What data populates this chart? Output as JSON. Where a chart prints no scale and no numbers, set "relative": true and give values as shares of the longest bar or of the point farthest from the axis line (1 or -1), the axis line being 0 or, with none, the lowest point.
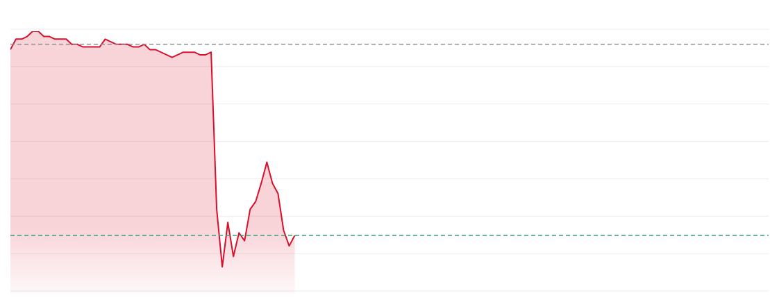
{
  "chart_data": {
    "type": "area",
    "relative": true,
    "grid": "y",
    "categories": [
      null,
      null,
      null,
      null,
      null,
      null,
      null,
      null,
      null,
      null,
      null,
      null,
      null,
      null,
      null,
      null,
      null,
      null,
      null,
      null,
      null,
      null,
      null,
      null,
      null,
      null,
      null,
      null,
      null,
      null,
      null,
      null,
      null,
      null,
      null,
      null,
      null,
      null,
      null,
      null,
      null,
      null,
      null,
      null,
      null,
      null,
      null,
      null,
      null,
      null,
      null,
      null,
      null,
      null,
      null,
      null,
      null,
      null,
      null,
      null,
      null,
      null,
      null,
      null,
      null,
      null,
      null,
      null,
      null,
      null,
      null,
      null,
      null,
      null,
      null,
      null,
      null,
      null,
      null,
      null,
      null,
      null,
      null,
      null,
      null,
      null,
      null,
      null,
      null,
      null,
      null,
      null,
      null,
      null,
      null,
      null,
      null,
      null,
      null,
      null,
      null,
      null,
      null,
      null,
      null,
      null,
      null,
      null,
      null,
      null,
      null,
      null,
      null,
      null,
      null,
      null,
      null,
      null,
      null,
      null,
      null,
      null,
      null,
      null,
      null,
      null,
      null,
      null,
      null,
      null,
      null,
      null,
      null,
      null,
      null,
      null,
      null
    ],
    "series": [
      {
        "color": "#d9102b",
        "values": [
          0.93,
          0.97,
          0.97,
          0.98,
          1.0,
          1.0,
          0.98,
          0.98,
          0.97,
          0.97,
          0.97,
          0.95,
          0.95,
          0.94,
          0.94,
          0.94,
          0.94,
          0.97,
          0.96,
          0.95,
          0.95,
          0.95,
          0.94,
          0.94,
          0.95,
          0.93,
          0.93,
          0.92,
          0.91,
          0.9,
          0.91,
          0.92,
          0.92,
          0.92,
          0.91,
          0.91,
          0.92,
          0.32,
          0.1,
          0.27,
          0.14,
          0.23,
          0.2,
          0.32,
          0.35,
          0.42,
          0.5,
          0.42,
          0.38,
          0.24,
          0.18,
          0.22,
          null,
          null,
          null,
          null,
          null,
          null,
          null,
          null,
          null,
          null,
          null,
          null,
          null,
          null,
          null,
          null,
          null,
          null,
          null,
          null,
          null,
          null,
          null,
          null,
          null,
          null,
          null,
          null,
          null,
          null,
          null,
          null,
          null,
          null,
          null,
          null,
          null,
          null,
          null,
          null,
          null,
          null,
          null,
          null,
          null,
          null,
          null,
          null,
          null,
          null,
          null,
          null,
          null,
          null,
          null,
          null,
          null,
          null,
          null,
          null,
          null,
          null,
          null,
          null,
          null,
          null,
          null,
          null,
          null,
          null,
          null,
          null,
          null,
          null,
          null,
          null,
          null,
          null,
          null,
          null,
          null,
          null,
          null,
          null,
          null
        ]
      }
    ],
    "ref_lines": [
      {
        "axis": "y",
        "value": 0.95,
        "color": "#8a8f98",
        "line_style": "dashed"
      },
      {
        "axis": "y",
        "value": 0.22,
        "color": "#3d9a7f",
        "line_style": "dashed"
      }
    ]
  }
}
